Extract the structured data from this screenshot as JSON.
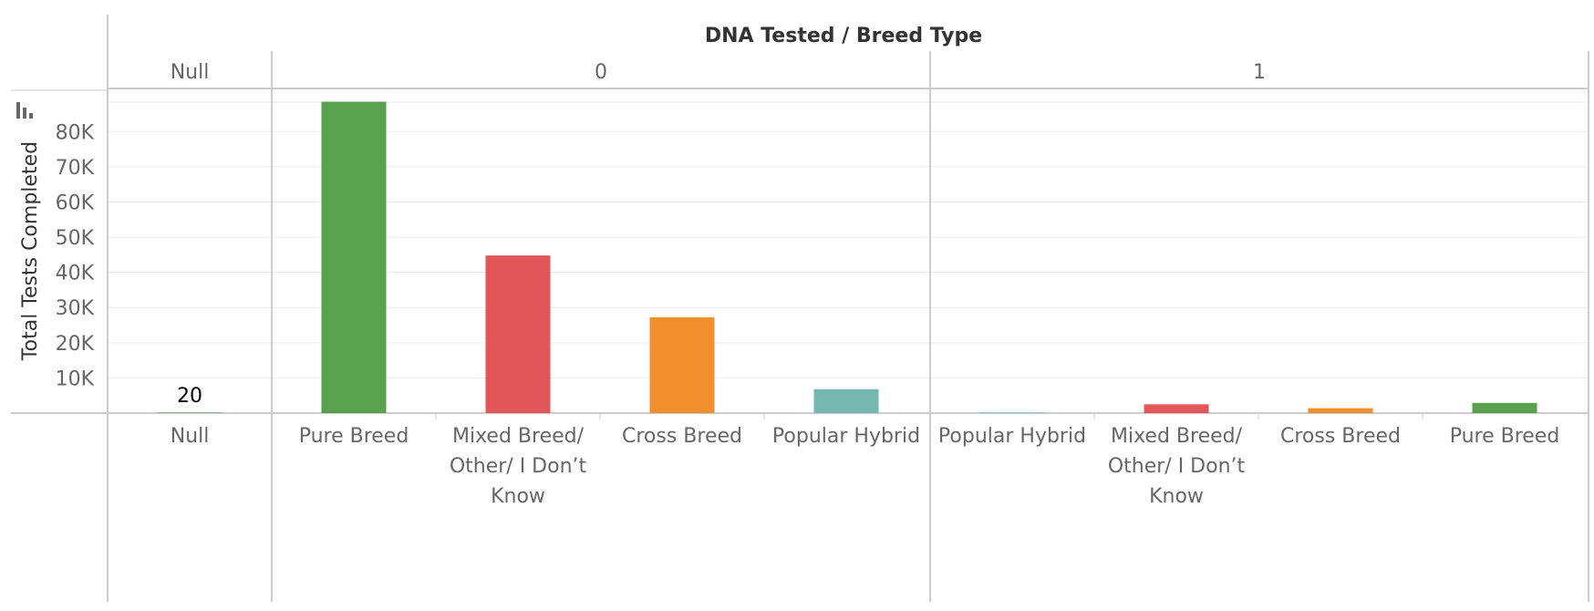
{
  "chart_data": {
    "type": "bar",
    "title": "DNA Tested  /  Breed Type",
    "ylabel": "Total Tests Completed",
    "xlabel": "",
    "ylim": [
      0,
      92000
    ],
    "yticks": [
      {
        "value": 10000,
        "label": "10K"
      },
      {
        "value": 20000,
        "label": "20K"
      },
      {
        "value": 30000,
        "label": "30K"
      },
      {
        "value": 40000,
        "label": "40K"
      },
      {
        "value": 50000,
        "label": "50K"
      },
      {
        "value": 60000,
        "label": "60K"
      },
      {
        "value": 70000,
        "label": "70K"
      },
      {
        "value": 80000,
        "label": "80K"
      }
    ],
    "grid": true,
    "groups": [
      {
        "label": "Null",
        "bars": [
          {
            "category": "Null",
            "value": 20,
            "color": "#59a14f",
            "value_label": "20"
          }
        ]
      },
      {
        "label": "0",
        "bars": [
          {
            "category": "Pure Breed",
            "value": 88500,
            "color": "#59a14f"
          },
          {
            "category": "Mixed Breed/ Other/ I Don’t Know",
            "value": 44800,
            "color": "#e15759"
          },
          {
            "category": "Cross Breed",
            "value": 27200,
            "color": "#f28e2b"
          },
          {
            "category": "Popular Hybrid",
            "value": 6800,
            "color": "#76b7b2"
          }
        ]
      },
      {
        "label": "1",
        "bars": [
          {
            "category": "Popular Hybrid",
            "value": 150,
            "color": "#76b7b2"
          },
          {
            "category": "Mixed Breed/ Other/ I Don’t Know",
            "value": 2500,
            "color": "#e15759"
          },
          {
            "category": "Cross Breed",
            "value": 1400,
            "color": "#f28e2b"
          },
          {
            "category": "Pure Breed",
            "value": 2900,
            "color": "#59a14f"
          }
        ]
      }
    ]
  }
}
